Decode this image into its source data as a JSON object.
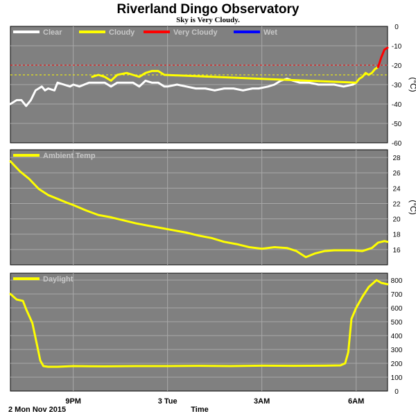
{
  "header": {
    "title": "Riverland Dingo Observatory",
    "subtitle": "Sky is Very Cloudy."
  },
  "footer": {
    "date_label": "2 Mon Nov 2015",
    "xlabel": "Time"
  },
  "colors": {
    "panel_bg": "#808080",
    "grid": "#a9a9a9",
    "clear": "#ffffff",
    "cloudy": "#ffff00",
    "very_cloudy": "#ff0000",
    "wet": "#0000ff",
    "ambient": "#ffff00",
    "daylight": "#ffff00"
  },
  "chart_data": [
    {
      "type": "line",
      "ylabel": "(°C)",
      "ylim": [
        -60,
        0
      ],
      "yticks": [
        "0",
        "-10",
        "-20",
        "-30",
        "-40",
        "-50",
        "-60"
      ],
      "xticks": [
        "9PM",
        "3 Tue",
        "3AM",
        "6AM"
      ],
      "xlim": [
        19.0,
        31.0
      ],
      "tick_hours": [
        21,
        24,
        27,
        30
      ],
      "grid": true,
      "legend": [
        "Clear",
        "Cloudy",
        "Very Cloudy",
        "Wet"
      ],
      "thresholds": [
        {
          "name": "Very Cloudy",
          "value": -20
        },
        {
          "name": "Cloudy",
          "value": -25
        }
      ],
      "series": [
        {
          "name": "Clear",
          "x": [
            19.0,
            19.2,
            19.35,
            19.5,
            19.65,
            19.8,
            20.0,
            20.1,
            20.2,
            20.4,
            20.5,
            20.7,
            20.9,
            21.0,
            21.2,
            21.5,
            21.8,
            22.0,
            22.2,
            22.4,
            22.7,
            22.9,
            23.1,
            23.3,
            23.5,
            23.7,
            23.9,
            24.0,
            24.3,
            24.6,
            24.9,
            25.2,
            25.5,
            25.8,
            26.1,
            26.4,
            26.7,
            26.9,
            27.2,
            27.4,
            27.6,
            27.8,
            28.0,
            28.2,
            28.5,
            28.8,
            29.0,
            29.3,
            29.6,
            29.9,
            30.0
          ],
          "y": [
            -40,
            -38,
            -38,
            -41,
            -38,
            -33,
            -31,
            -33,
            -32,
            -33,
            -29,
            -30,
            -31,
            -30,
            -31,
            -29,
            -29,
            -29,
            -31,
            -29,
            -29,
            -29,
            -31,
            -28,
            -29,
            -29,
            -31,
            -31,
            -30,
            -31,
            -32,
            -32,
            -33,
            -32,
            -32,
            -33,
            -32,
            -32,
            -31,
            -30,
            -28,
            -27,
            -28,
            -29,
            -29,
            -30,
            -30,
            -30,
            -31,
            -30,
            -29
          ]
        },
        {
          "name": "Cloudy",
          "x": [
            21.6,
            21.8,
            22.0,
            22.2,
            22.4,
            22.7,
            22.9,
            23.1,
            23.3,
            23.5,
            23.7,
            23.9,
            30.0,
            30.1,
            30.2,
            30.3,
            30.4,
            30.5,
            30.6,
            30.7
          ],
          "y": [
            -26,
            -25,
            -26,
            -28,
            -25,
            -24,
            -25,
            -26,
            -24,
            -23,
            -23,
            -25,
            -29,
            -27,
            -26,
            -24,
            -25,
            -24,
            -22,
            -21
          ]
        },
        {
          "name": "Very Cloudy",
          "x": [
            30.7,
            30.8,
            30.9,
            31.0
          ],
          "y": [
            -21,
            -16,
            -12,
            -11
          ]
        }
      ]
    },
    {
      "type": "line",
      "ylabel": "(°C)",
      "ylim": [
        14,
        29
      ],
      "yticks": [
        "28",
        "26",
        "24",
        "22",
        "20",
        "18",
        "16"
      ],
      "xticks": [
        "9PM",
        "3 Tue",
        "3AM",
        "6AM"
      ],
      "xlim": [
        19.0,
        31.0
      ],
      "tick_hours": [
        21,
        24,
        27,
        30
      ],
      "grid": true,
      "legend": [
        "Ambient Temp"
      ],
      "series": [
        {
          "name": "Ambient Temp",
          "x": [
            19.0,
            19.3,
            19.6,
            19.9,
            20.2,
            20.5,
            20.8,
            21.0,
            21.4,
            21.8,
            22.2,
            22.6,
            23.0,
            23.4,
            23.8,
            24.2,
            24.6,
            25.0,
            25.4,
            25.8,
            26.2,
            26.6,
            27.0,
            27.4,
            27.8,
            28.1,
            28.4,
            28.7,
            29.0,
            29.3,
            29.6,
            29.9,
            30.2,
            30.5,
            30.7,
            30.9,
            31.0
          ],
          "y": [
            27.5,
            26.2,
            25.2,
            23.9,
            23.1,
            22.6,
            22.1,
            21.8,
            21.1,
            20.5,
            20.2,
            19.8,
            19.4,
            19.1,
            18.8,
            18.5,
            18.2,
            17.8,
            17.5,
            17.0,
            16.7,
            16.3,
            16.1,
            16.3,
            16.2,
            15.8,
            15.0,
            15.5,
            15.8,
            15.9,
            15.9,
            15.9,
            15.8,
            16.2,
            16.9,
            17.1,
            17.0
          ]
        }
      ]
    },
    {
      "type": "line",
      "ylabel": "",
      "ylim": [
        0,
        850
      ],
      "yticks": [
        "800",
        "700",
        "600",
        "500",
        "400",
        "300",
        "200",
        "100",
        "0"
      ],
      "xticks": [
        "9PM",
        "3 Tue",
        "3AM",
        "6AM"
      ],
      "xlim": [
        19.0,
        31.0
      ],
      "tick_hours": [
        21,
        24,
        27,
        30
      ],
      "grid": true,
      "legend": [
        "Daylight"
      ],
      "series": [
        {
          "name": "Daylight",
          "x": [
            19.0,
            19.2,
            19.4,
            19.5,
            19.7,
            19.85,
            19.95,
            20.05,
            20.2,
            20.5,
            21.0,
            22.0,
            23.0,
            24.0,
            25.0,
            26.0,
            27.0,
            28.0,
            29.0,
            29.5,
            29.65,
            29.75,
            29.85,
            30.0,
            30.2,
            30.4,
            30.55,
            30.65,
            30.8,
            31.0
          ],
          "y": [
            700,
            660,
            650,
            590,
            490,
            330,
            220,
            180,
            175,
            175,
            180,
            178,
            180,
            180,
            182,
            180,
            183,
            182,
            183,
            185,
            200,
            280,
            520,
            600,
            680,
            750,
            780,
            800,
            780,
            770
          ]
        }
      ]
    }
  ]
}
